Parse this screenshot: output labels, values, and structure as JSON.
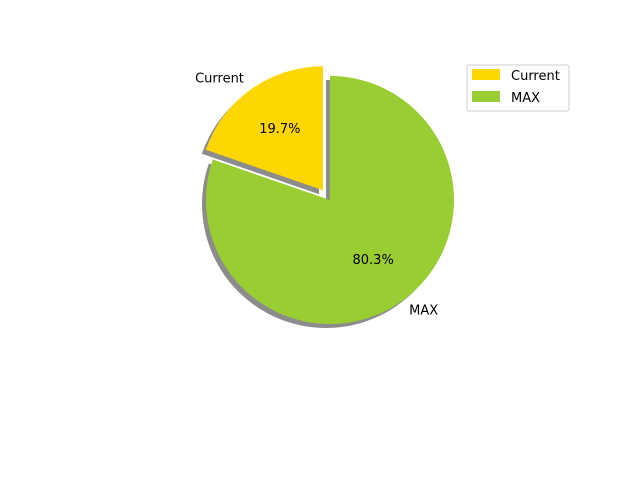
{
  "chart_data": {
    "type": "pie",
    "labels": [
      "Current",
      "MAX"
    ],
    "values": [
      19.7,
      80.3
    ],
    "percent_labels": [
      "19.7%",
      "80.3%"
    ],
    "colors": [
      "#ffd700",
      "#9acd32"
    ],
    "exploded": [
      true,
      false
    ],
    "shadow": true,
    "legend": {
      "placement": "top-right",
      "entries": [
        "Current",
        "MAX"
      ]
    }
  }
}
